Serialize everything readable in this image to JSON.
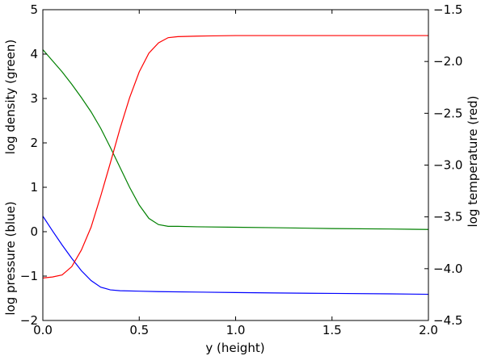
{
  "chart_data": {
    "type": "line",
    "xlabel": "y (height)",
    "ylabel_left_top": "log density (green)",
    "ylabel_left_bottom": "log pressure (blue)",
    "ylabel_right": "log temperature (red)",
    "xlim": [
      0.0,
      2.0
    ],
    "ylim_left": [
      -2,
      5
    ],
    "ylim_right": [
      -4.5,
      -1.5
    ],
    "x_ticks": [
      0.0,
      0.5,
      1.0,
      1.5,
      2.0
    ],
    "x_tick_labels": [
      "0.0",
      "0.5",
      "1.0",
      "1.5",
      "2.0"
    ],
    "y_ticks_left": [
      -2,
      -1,
      0,
      1,
      2,
      3,
      4,
      5
    ],
    "y_tick_labels_left": [
      "−2",
      "−1",
      "0",
      "1",
      "2",
      "3",
      "4",
      "5"
    ],
    "y_ticks_right": [
      -4.5,
      -4.0,
      -3.5,
      -3.0,
      -2.5,
      -2.0,
      -1.5
    ],
    "y_tick_labels_right": [
      "−4.5",
      "−4.0",
      "−3.5",
      "−3.0",
      "−2.5",
      "−2.0",
      "−1.5"
    ],
    "grid": false,
    "series": [
      {
        "axis": "left",
        "color": "#008000",
        "x": [
          0.0,
          0.05,
          0.1,
          0.15,
          0.2,
          0.25,
          0.3,
          0.35,
          0.4,
          0.45,
          0.5,
          0.55,
          0.6,
          0.65,
          0.7,
          0.8,
          1.0,
          1.2,
          1.5,
          1.8,
          2.0
        ],
        "y": [
          4.1,
          3.85,
          3.6,
          3.32,
          3.02,
          2.7,
          2.33,
          1.9,
          1.45,
          1.0,
          0.6,
          0.3,
          0.16,
          0.12,
          0.12,
          0.11,
          0.1,
          0.09,
          0.07,
          0.06,
          0.05
        ]
      },
      {
        "axis": "left",
        "color": "#0000ff",
        "x": [
          0.0,
          0.05,
          0.1,
          0.15,
          0.2,
          0.25,
          0.3,
          0.35,
          0.4,
          0.5,
          0.6,
          0.8,
          1.0,
          1.2,
          1.5,
          1.8,
          2.0
        ],
        "y": [
          0.35,
          0.02,
          -0.3,
          -0.6,
          -0.88,
          -1.1,
          -1.25,
          -1.31,
          -1.33,
          -1.34,
          -1.35,
          -1.36,
          -1.37,
          -1.38,
          -1.39,
          -1.4,
          -1.41
        ]
      },
      {
        "axis": "right",
        "color": "#ff0000",
        "x": [
          0.0,
          0.05,
          0.1,
          0.15,
          0.2,
          0.25,
          0.3,
          0.35,
          0.4,
          0.45,
          0.5,
          0.55,
          0.6,
          0.65,
          0.7,
          0.8,
          1.0,
          1.5,
          2.0
        ],
        "y": [
          -4.09,
          -4.08,
          -4.06,
          -3.98,
          -3.82,
          -3.6,
          -3.3,
          -2.98,
          -2.65,
          -2.35,
          -2.1,
          -1.92,
          -1.82,
          -1.77,
          -1.76,
          -1.755,
          -1.75,
          -1.75,
          -1.75
        ]
      }
    ]
  }
}
